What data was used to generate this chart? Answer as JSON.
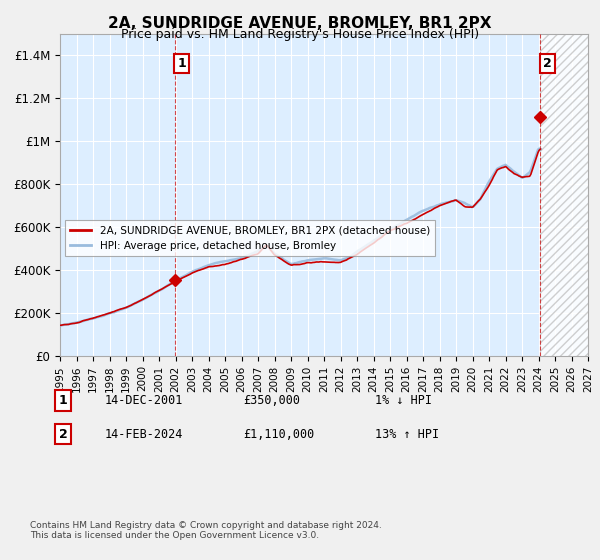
{
  "title": "2A, SUNDRIDGE AVENUE, BROMLEY, BR1 2PX",
  "subtitle": "Price paid vs. HM Land Registry's House Price Index (HPI)",
  "legend_label_red": "2A, SUNDRIDGE AVENUE, BROMLEY, BR1 2PX (detached house)",
  "legend_label_blue": "HPI: Average price, detached house, Bromley",
  "footnote": "Contains HM Land Registry data © Crown copyright and database right 2024.\nThis data is licensed under the Open Government Licence v3.0.",
  "sale1_label": "1",
  "sale1_date": "14-DEC-2001",
  "sale1_price": "£350,000",
  "sale1_hpi": "1% ↓ HPI",
  "sale1_year": 2001.96,
  "sale1_value": 350000,
  "sale2_label": "2",
  "sale2_date": "14-FEB-2024",
  "sale2_price": "£1,110,000",
  "sale2_hpi": "13% ↑ HPI",
  "sale2_year": 2024.12,
  "sale2_value": 1110000,
  "xlim": [
    1995,
    2027
  ],
  "ylim": [
    0,
    1500000
  ],
  "yticks": [
    0,
    200000,
    400000,
    600000,
    800000,
    1000000,
    1200000,
    1400000
  ],
  "ytick_labels": [
    "£0",
    "£200K",
    "£400K",
    "£600K",
    "£800K",
    "£1M",
    "£1.2M",
    "£1.4M"
  ],
  "xticks": [
    1995,
    1996,
    1997,
    1998,
    1999,
    2000,
    2001,
    2002,
    2003,
    2004,
    2005,
    2006,
    2007,
    2008,
    2009,
    2010,
    2011,
    2012,
    2013,
    2014,
    2015,
    2016,
    2017,
    2018,
    2019,
    2020,
    2021,
    2022,
    2023,
    2024,
    2025,
    2026,
    2027
  ],
  "color_red": "#cc0000",
  "color_blue": "#99bbdd",
  "color_vline": "#cc0000",
  "bg_color": "#f0f0f0",
  "plot_bg": "#ddeeff",
  "grid_color": "#ffffff",
  "hatch_color": "#cccccc"
}
